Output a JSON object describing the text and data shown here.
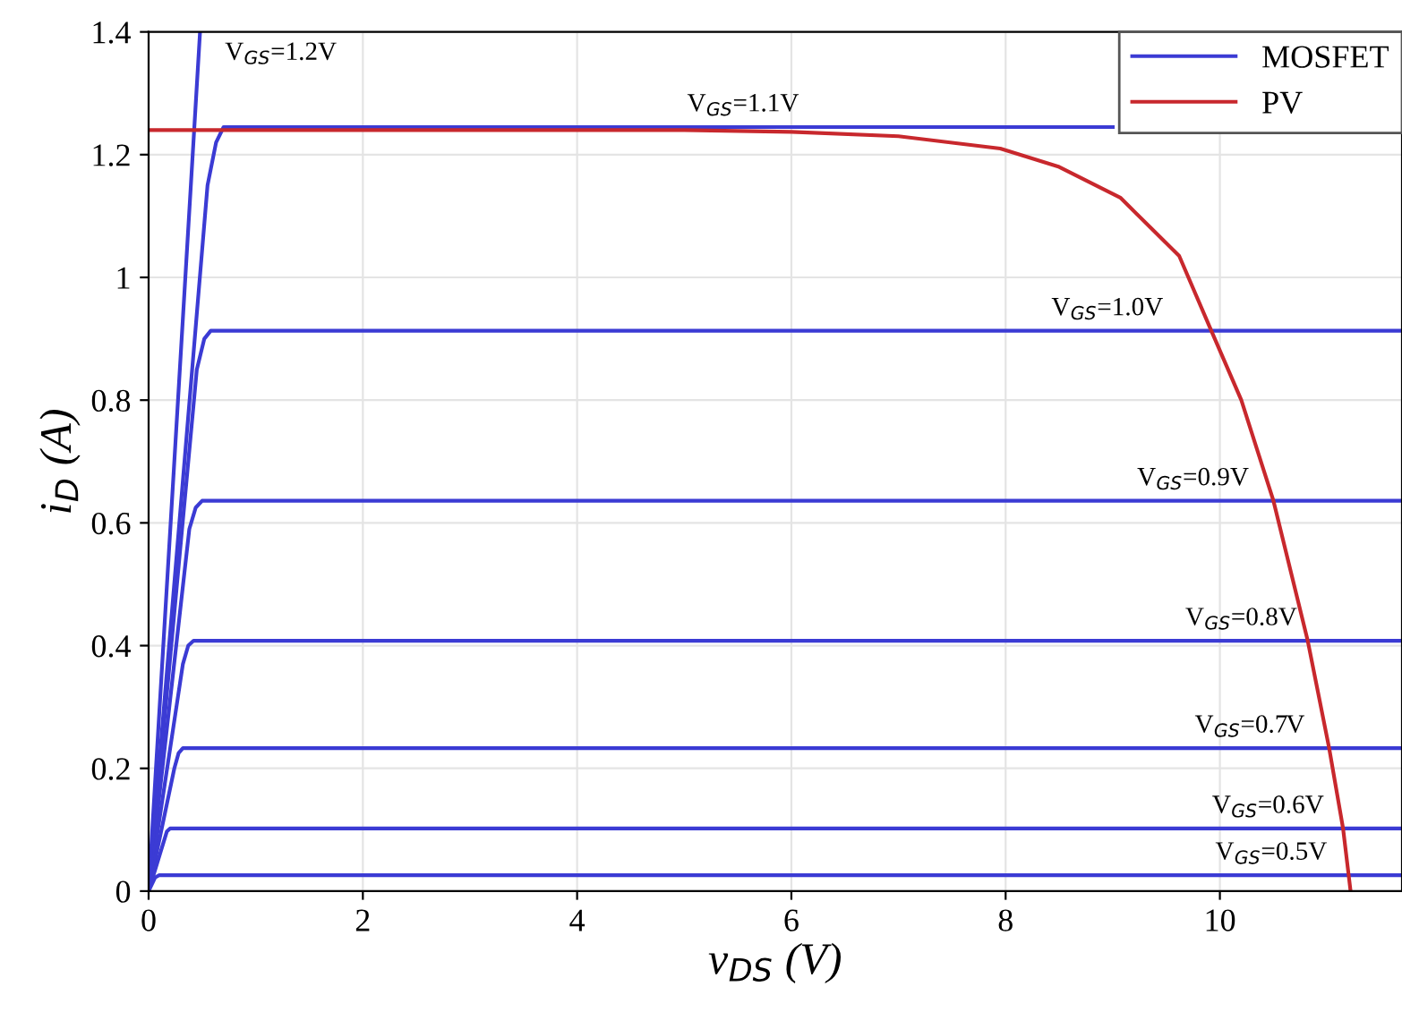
{
  "chart_data": {
    "type": "line",
    "xlabel": "v$_{DS}$ (V)",
    "ylabel": "i$_{D}$ (A)",
    "xlim": [
      0,
      11.7
    ],
    "ylim": [
      0,
      1.4
    ],
    "xticks": [
      0,
      2,
      4,
      6,
      8,
      10
    ],
    "yticks": [
      0,
      0.2,
      0.4,
      0.6,
      0.8,
      1,
      1.2,
      1.4
    ],
    "grid": true,
    "legend": "top right",
    "series": [
      {
        "name": "MOSFET",
        "color": "#3b3bd4",
        "x": [
          0,
          0.48
        ],
        "values": [
          0,
          1.4
        ]
      },
      {
        "color": "#3b3bd4",
        "x": [
          0,
          0.55,
          0.63,
          0.7,
          9.0
        ],
        "values": [
          0,
          1.15,
          1.22,
          1.245,
          1.245
        ]
      },
      {
        "color": "#3b3bd4",
        "x": [
          0,
          0.45,
          0.52,
          0.58,
          11.7
        ],
        "values": [
          0,
          0.85,
          0.9,
          0.913,
          0.913
        ]
      },
      {
        "color": "#3b3bd4",
        "x": [
          0,
          0.38,
          0.44,
          0.5,
          11.7
        ],
        "values": [
          0,
          0.59,
          0.625,
          0.636,
          0.636
        ]
      },
      {
        "color": "#3b3bd4",
        "x": [
          0,
          0.32,
          0.37,
          0.42,
          11.7
        ],
        "values": [
          0,
          0.37,
          0.4,
          0.408,
          0.408
        ]
      },
      {
        "color": "#3b3bd4",
        "x": [
          0,
          0.24,
          0.28,
          0.32,
          11.7
        ],
        "values": [
          0,
          0.2,
          0.225,
          0.233,
          0.233
        ]
      },
      {
        "color": "#3b3bd4",
        "x": [
          0,
          0.14,
          0.17,
          0.2,
          11.7
        ],
        "values": [
          0,
          0.08,
          0.097,
          0.102,
          0.102
        ]
      },
      {
        "color": "#3b3bd4",
        "x": [
          0,
          0.06,
          0.1,
          11.7
        ],
        "values": [
          0,
          0.022,
          0.026,
          0.026
        ]
      },
      {
        "name": "PV",
        "color": "#c8282d",
        "x": [
          0,
          5,
          6,
          7,
          7.95,
          8.5,
          9.07,
          9.62,
          9.92,
          10.2,
          10.5,
          10.82,
          11.02,
          11.15,
          11.22
        ],
        "values": [
          1.24,
          1.24,
          1.237,
          1.23,
          1.21,
          1.18,
          1.13,
          1.035,
          0.913,
          0.8,
          0.636,
          0.408,
          0.233,
          0.102,
          0
        ]
      }
    ],
    "annotations": [
      {
        "text": "V$_{GS}$=1.2V",
        "x": 0.48,
        "y": 1.4
      },
      {
        "text": "V$_{GS}$=1.1V",
        "x": 5.55,
        "y": 1.245
      },
      {
        "text": "V$_{GS}$=1.0V",
        "x": 8.95,
        "y": 0.913
      },
      {
        "text": "V$_{GS}$=0.9V",
        "x": 9.75,
        "y": 0.636
      },
      {
        "text": "V$_{GS}$=0.8V",
        "x": 10.2,
        "y": 0.408
      },
      {
        "text": "V$_{GS}$=0.7V",
        "x": 10.28,
        "y": 0.233
      },
      {
        "text": "V$_{GS}$=0.6V",
        "x": 10.45,
        "y": 0.102
      },
      {
        "text": "V$_{GS}$=0.5V",
        "x": 10.48,
        "y": 0.026
      }
    ]
  }
}
